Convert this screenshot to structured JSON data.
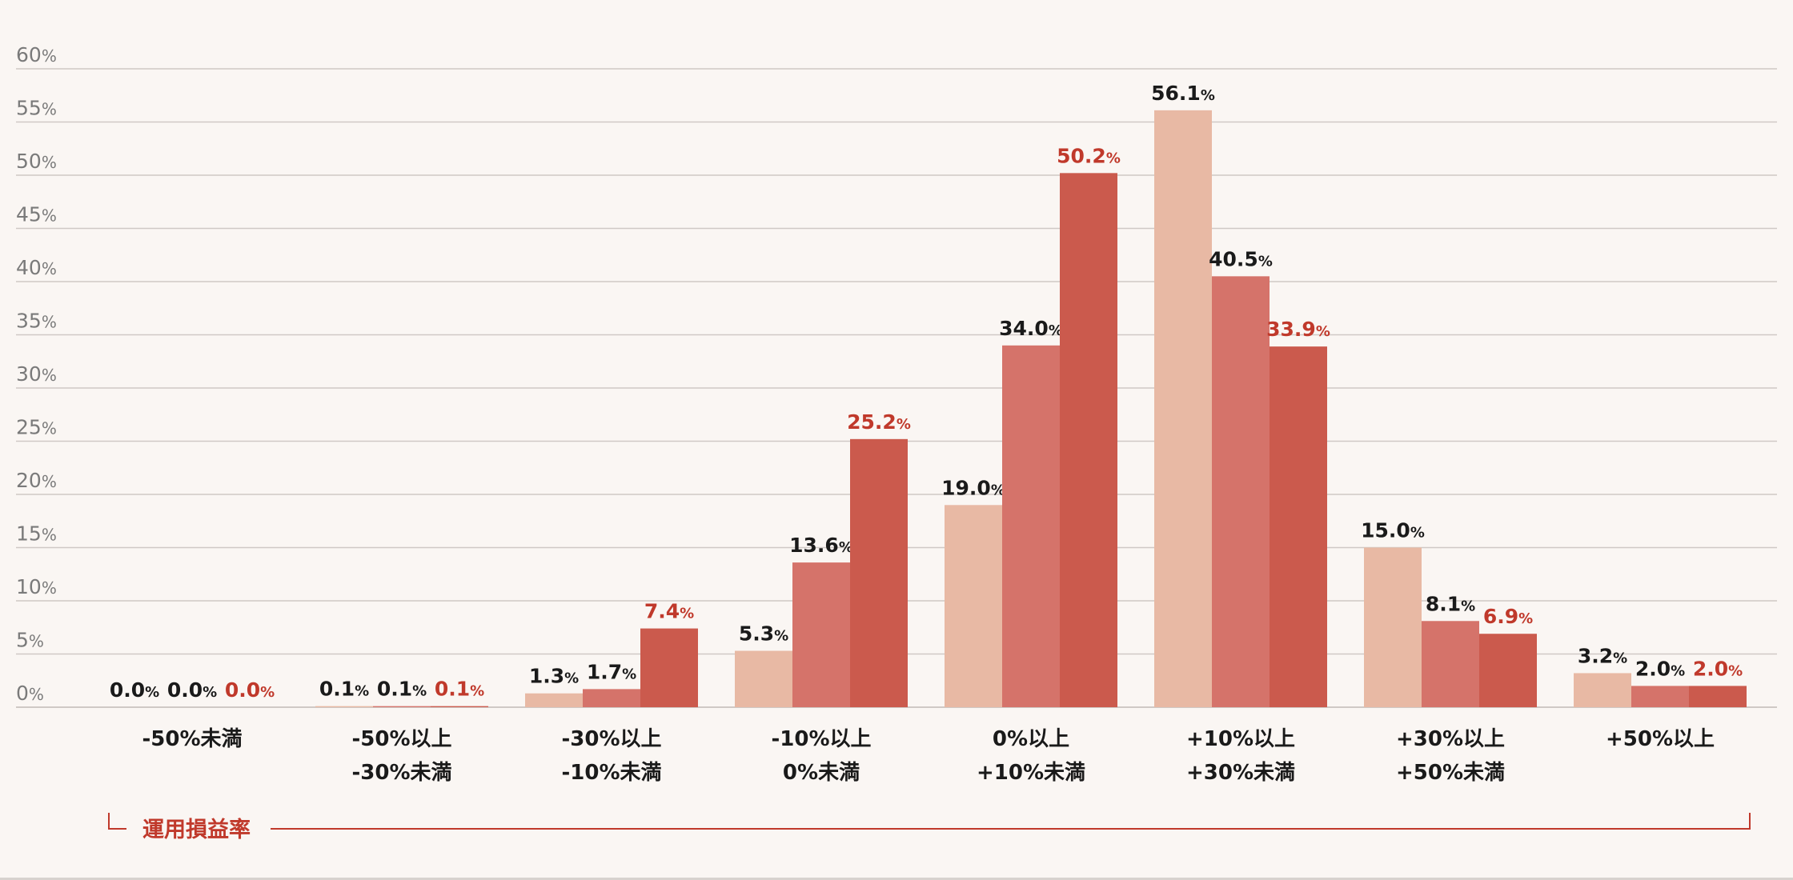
{
  "chart_data": {
    "type": "bar",
    "categories": [
      [
        "-50%未満"
      ],
      [
        "-50%以上",
        "-30%未満"
      ],
      [
        "-30%以上",
        "-10%未満"
      ],
      [
        "-10%以上",
        "0%未満"
      ],
      [
        "0%以上",
        "+10%未満"
      ],
      [
        "+10%以上",
        "+30%未満"
      ],
      [
        "+30%以上",
        "+50%未満"
      ],
      [
        "+50%以上"
      ]
    ],
    "series": [
      {
        "values": [
          0.0,
          0.1,
          1.3,
          5.3,
          19.0,
          56.1,
          15.0,
          3.2
        ],
        "color": "#e8b9a4",
        "label_color": "#1a1a1a"
      },
      {
        "values": [
          0.0,
          0.1,
          1.7,
          13.6,
          34.0,
          40.5,
          8.1,
          2.0
        ],
        "color": "#d5736a",
        "label_color": "#1a1a1a"
      },
      {
        "values": [
          0.0,
          0.1,
          7.4,
          25.2,
          50.2,
          33.9,
          6.9,
          2.0
        ],
        "color": "#cb5a4d",
        "label_color": "#c0392b"
      }
    ],
    "ylim": [
      0,
      60
    ],
    "yticks": [
      0,
      5,
      10,
      15,
      20,
      25,
      30,
      35,
      40,
      45,
      50,
      55,
      60
    ],
    "tick_suffix": "%",
    "value_suffix": "%",
    "xlabel": "運用損益率",
    "grid": true,
    "colors": {
      "accent": "#c0392b",
      "grid": "#cfc9c5",
      "tick_text": "#7a7a7a",
      "background": "#faf6f3"
    }
  }
}
